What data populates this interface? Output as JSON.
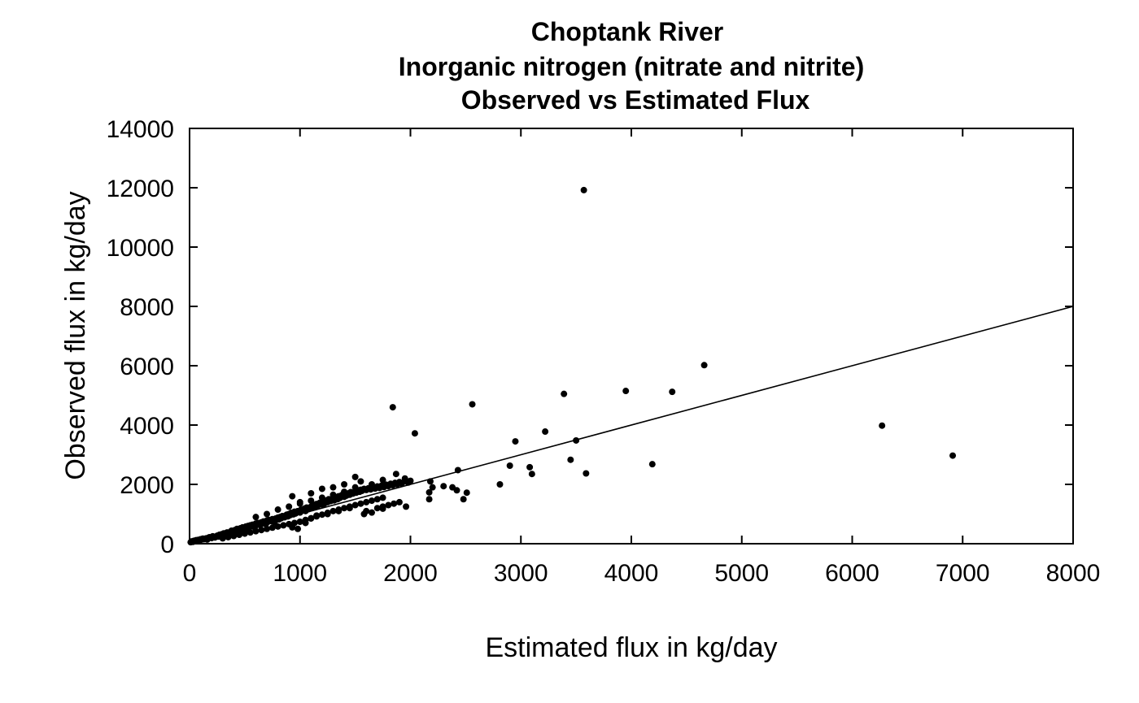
{
  "chart_data": {
    "type": "scatter",
    "title_lines": [
      "Choptank River",
      "Inorganic nitrogen (nitrate and nitrite)",
      "Observed vs Estimated Flux"
    ],
    "xlabel": "Estimated flux in kg/day",
    "ylabel": "Observed flux in kg/day",
    "xlim": [
      0,
      8000
    ],
    "ylim": [
      0,
      14000
    ],
    "x_ticks": [
      0,
      1000,
      2000,
      3000,
      4000,
      5000,
      6000,
      7000,
      8000
    ],
    "y_ticks": [
      0,
      2000,
      4000,
      6000,
      8000,
      10000,
      12000,
      14000
    ],
    "x_tick_labels": [
      "0",
      "1000",
      "2000",
      "3000",
      "4000",
      "5000",
      "6000",
      "7000",
      "8000"
    ],
    "y_tick_labels": [
      "0",
      "2000",
      "4000",
      "6000",
      "8000",
      "10000",
      "12000",
      "14000"
    ],
    "grid": false,
    "reference_line": {
      "x": [
        0,
        8000
      ],
      "y": [
        0,
        8000
      ]
    },
    "points": [
      [
        10,
        50
      ],
      [
        20,
        80
      ],
      [
        30,
        60
      ],
      [
        40,
        100
      ],
      [
        50,
        90
      ],
      [
        60,
        120
      ],
      [
        80,
        130
      ],
      [
        90,
        110
      ],
      [
        100,
        150
      ],
      [
        110,
        140
      ],
      [
        120,
        170
      ],
      [
        130,
        150
      ],
      [
        150,
        180
      ],
      [
        160,
        140
      ],
      [
        170,
        200
      ],
      [
        180,
        220
      ],
      [
        200,
        190
      ],
      [
        210,
        250
      ],
      [
        220,
        230
      ],
      [
        230,
        210
      ],
      [
        250,
        270
      ],
      [
        260,
        240
      ],
      [
        270,
        300
      ],
      [
        280,
        260
      ],
      [
        290,
        320
      ],
      [
        300,
        280
      ],
      [
        310,
        350
      ],
      [
        320,
        300
      ],
      [
        330,
        330
      ],
      [
        340,
        380
      ],
      [
        350,
        360
      ],
      [
        360,
        320
      ],
      [
        370,
        400
      ],
      [
        380,
        440
      ],
      [
        390,
        420
      ],
      [
        400,
        380
      ],
      [
        410,
        460
      ],
      [
        420,
        430
      ],
      [
        430,
        500
      ],
      [
        440,
        470
      ],
      [
        450,
        440
      ],
      [
        460,
        520
      ],
      [
        470,
        480
      ],
      [
        480,
        550
      ],
      [
        490,
        500
      ],
      [
        500,
        470
      ],
      [
        510,
        580
      ],
      [
        520,
        540
      ],
      [
        530,
        600
      ],
      [
        540,
        560
      ],
      [
        550,
        620
      ],
      [
        560,
        590
      ],
      [
        570,
        640
      ],
      [
        580,
        610
      ],
      [
        590,
        550
      ],
      [
        600,
        680
      ],
      [
        610,
        650
      ],
      [
        620,
        700
      ],
      [
        640,
        620
      ],
      [
        650,
        720
      ],
      [
        660,
        690
      ],
      [
        670,
        750
      ],
      [
        680,
        710
      ],
      [
        690,
        660
      ],
      [
        700,
        780
      ],
      [
        710,
        740
      ],
      [
        720,
        800
      ],
      [
        740,
        760
      ],
      [
        750,
        830
      ],
      [
        760,
        790
      ],
      [
        770,
        720
      ],
      [
        780,
        850
      ],
      [
        800,
        880
      ],
      [
        810,
        820
      ],
      [
        820,
        900
      ],
      [
        830,
        860
      ],
      [
        840,
        930
      ],
      [
        860,
        890
      ],
      [
        870,
        950
      ],
      [
        880,
        980
      ],
      [
        890,
        920
      ],
      [
        900,
        1000
      ],
      [
        910,
        960
      ],
      [
        920,
        1040
      ],
      [
        940,
        990
      ],
      [
        950,
        1080
      ],
      [
        960,
        1020
      ],
      [
        980,
        1100
      ],
      [
        1000,
        1050
      ],
      [
        1010,
        1150
      ],
      [
        1020,
        1120
      ],
      [
        1040,
        1180
      ],
      [
        1050,
        1100
      ],
      [
        1060,
        1220
      ],
      [
        1080,
        1170
      ],
      [
        1100,
        1250
      ],
      [
        1110,
        1200
      ],
      [
        1120,
        1300
      ],
      [
        1140,
        1230
      ],
      [
        1150,
        1340
      ],
      [
        1160,
        1280
      ],
      [
        1180,
        1380
      ],
      [
        1200,
        1320
      ],
      [
        1210,
        1420
      ],
      [
        1220,
        1350
      ],
      [
        1240,
        1460
      ],
      [
        1250,
        1400
      ],
      [
        1260,
        1500
      ],
      [
        1280,
        1440
      ],
      [
        1300,
        1520
      ],
      [
        1310,
        1460
      ],
      [
        1320,
        1560
      ],
      [
        1340,
        1500
      ],
      [
        1350,
        1600
      ],
      [
        1360,
        1540
      ],
      [
        1380,
        1640
      ],
      [
        1400,
        1580
      ],
      [
        1410,
        1680
      ],
      [
        1420,
        1620
      ],
      [
        1440,
        1700
      ],
      [
        1450,
        1650
      ],
      [
        1460,
        1740
      ],
      [
        1480,
        1690
      ],
      [
        1500,
        1760
      ],
      [
        1510,
        1720
      ],
      [
        1520,
        1800
      ],
      [
        1540,
        1750
      ],
      [
        1550,
        1820
      ],
      [
        1560,
        1780
      ],
      [
        1580,
        1850
      ],
      [
        1600,
        1810
      ],
      [
        1620,
        1870
      ],
      [
        1640,
        1830
      ],
      [
        1660,
        1900
      ],
      [
        1680,
        1860
      ],
      [
        1700,
        1930
      ],
      [
        1720,
        1880
      ],
      [
        1740,
        1960
      ],
      [
        1760,
        1910
      ],
      [
        1780,
        1990
      ],
      [
        1800,
        1940
      ],
      [
        1820,
        2020
      ],
      [
        1840,
        1970
      ],
      [
        1860,
        2050
      ],
      [
        1880,
        2000
      ],
      [
        1900,
        2080
      ],
      [
        1920,
        2030
      ],
      [
        1950,
        2100
      ],
      [
        1980,
        2060
      ],
      [
        2000,
        2120
      ],
      [
        300,
        180
      ],
      [
        350,
        220
      ],
      [
        400,
        260
      ],
      [
        450,
        300
      ],
      [
        500,
        340
      ],
      [
        550,
        380
      ],
      [
        600,
        420
      ],
      [
        650,
        460
      ],
      [
        700,
        500
      ],
      [
        750,
        540
      ],
      [
        800,
        580
      ],
      [
        850,
        620
      ],
      [
        900,
        660
      ],
      [
        950,
        700
      ],
      [
        1000,
        740
      ],
      [
        1050,
        800
      ],
      [
        1100,
        860
      ],
      [
        1150,
        920
      ],
      [
        1200,
        980
      ],
      [
        1250,
        1040
      ],
      [
        1300,
        1100
      ],
      [
        1350,
        1150
      ],
      [
        1400,
        1200
      ],
      [
        1450,
        1250
      ],
      [
        1500,
        1300
      ],
      [
        1550,
        1350
      ],
      [
        1600,
        1400
      ],
      [
        1650,
        1450
      ],
      [
        1700,
        1500
      ],
      [
        1750,
        1550
      ],
      [
        600,
        900
      ],
      [
        700,
        1000
      ],
      [
        800,
        1150
      ],
      [
        900,
        1250
      ],
      [
        1000,
        1350
      ],
      [
        1100,
        1450
      ],
      [
        1200,
        1550
      ],
      [
        1300,
        1650
      ],
      [
        1400,
        1750
      ],
      [
        1500,
        1900
      ],
      [
        930,
        1600
      ],
      [
        1000,
        1400
      ],
      [
        1100,
        1700
      ],
      [
        1200,
        1850
      ],
      [
        1300,
        1900
      ],
      [
        1400,
        2000
      ],
      [
        1500,
        2250
      ],
      [
        1550,
        2100
      ],
      [
        1650,
        2000
      ],
      [
        1750,
        2150
      ],
      [
        1870,
        2350
      ],
      [
        1950,
        2200
      ],
      [
        930,
        550
      ],
      [
        980,
        500
      ],
      [
        1050,
        700
      ],
      [
        1100,
        850
      ],
      [
        1150,
        950
      ],
      [
        1250,
        1000
      ],
      [
        1350,
        1100
      ],
      [
        1450,
        1200
      ],
      [
        1600,
        1100
      ],
      [
        1650,
        1050
      ],
      [
        1700,
        1200
      ],
      [
        1750,
        1250
      ],
      [
        1800,
        1300
      ],
      [
        1850,
        1350
      ],
      [
        1900,
        1400
      ],
      [
        1960,
        1250
      ],
      [
        1750,
        1180
      ],
      [
        1580,
        1000
      ],
      [
        1840,
        4600
      ],
      [
        2040,
        3720
      ],
      [
        2170,
        1730
      ],
      [
        2170,
        1500
      ],
      [
        2180,
        2100
      ],
      [
        2200,
        1900
      ],
      [
        2300,
        1940
      ],
      [
        2380,
        1900
      ],
      [
        2420,
        1800
      ],
      [
        2430,
        2480
      ],
      [
        2480,
        1500
      ],
      [
        2510,
        1720
      ],
      [
        2560,
        4700
      ],
      [
        2810,
        2000
      ],
      [
        2900,
        2630
      ],
      [
        2950,
        3450
      ],
      [
        3080,
        2580
      ],
      [
        3100,
        2350
      ],
      [
        3220,
        3780
      ],
      [
        3390,
        5050
      ],
      [
        3450,
        2830
      ],
      [
        3500,
        3480
      ],
      [
        3570,
        11920
      ],
      [
        3590,
        2370
      ],
      [
        3950,
        5150
      ],
      [
        4190,
        2680
      ],
      [
        4370,
        5120
      ],
      [
        4660,
        6020
      ],
      [
        6270,
        3980
      ],
      [
        6910,
        2970
      ]
    ]
  }
}
